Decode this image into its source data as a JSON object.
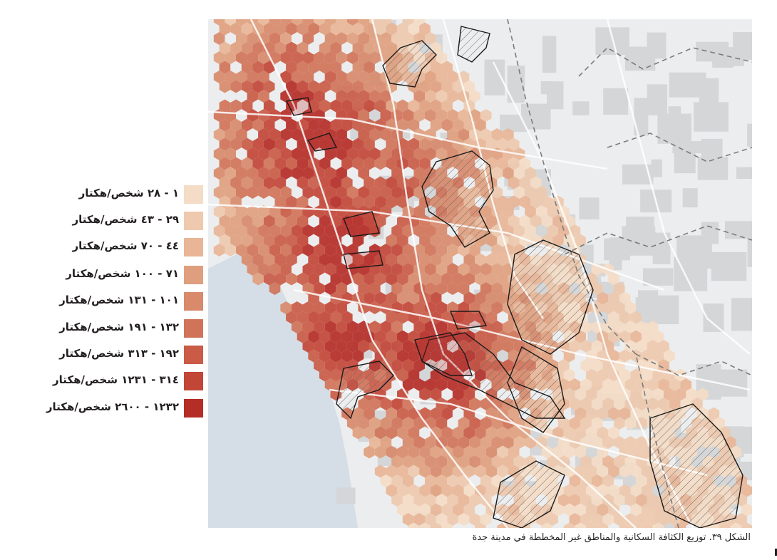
{
  "legend": {
    "items": [
      {
        "label": "١ - ٢٨ شخص/هكتار",
        "color": "#f4dcc6"
      },
      {
        "label": "٢٩ - ٤٣ شخص/هكتار",
        "color": "#eec9ae"
      },
      {
        "label": "٤٤ - ٧٠ شخص/هكتار",
        "color": "#e8b596"
      },
      {
        "label": "٧١ - ١٠٠ شخص/هكتار",
        "color": "#df9f7e"
      },
      {
        "label": "١٠١ - ١٣١ شخص/هكتار",
        "color": "#d88a6b"
      },
      {
        "label": "١٣٢ - ١٩١ شخص/هكتار",
        "color": "#d07359"
      },
      {
        "label": "١٩٢ - ٣١٣ شخص/هكتار",
        "color": "#c95b47"
      },
      {
        "label": "٣١٤ - ١٢٣١ شخص/هكتار",
        "color": "#c24637"
      },
      {
        "label": "١٢٣٢ - ٢٦٠٠ شخص/هكتار",
        "color": "#b52d27"
      }
    ]
  },
  "caption": "الشكل ٣٩. توزيع الكثافة السكانية والمناطق غير المخططة في مدينة جدة",
  "colors": {
    "sea": "#d7e0e7",
    "land": "#e9eaeb",
    "block": "#d2d4d6",
    "road": "#ffffff",
    "boundary": "#8a8a8a",
    "unplanned_outline": "#1a1a1a"
  },
  "icons": [
    "hatch-pattern"
  ]
}
